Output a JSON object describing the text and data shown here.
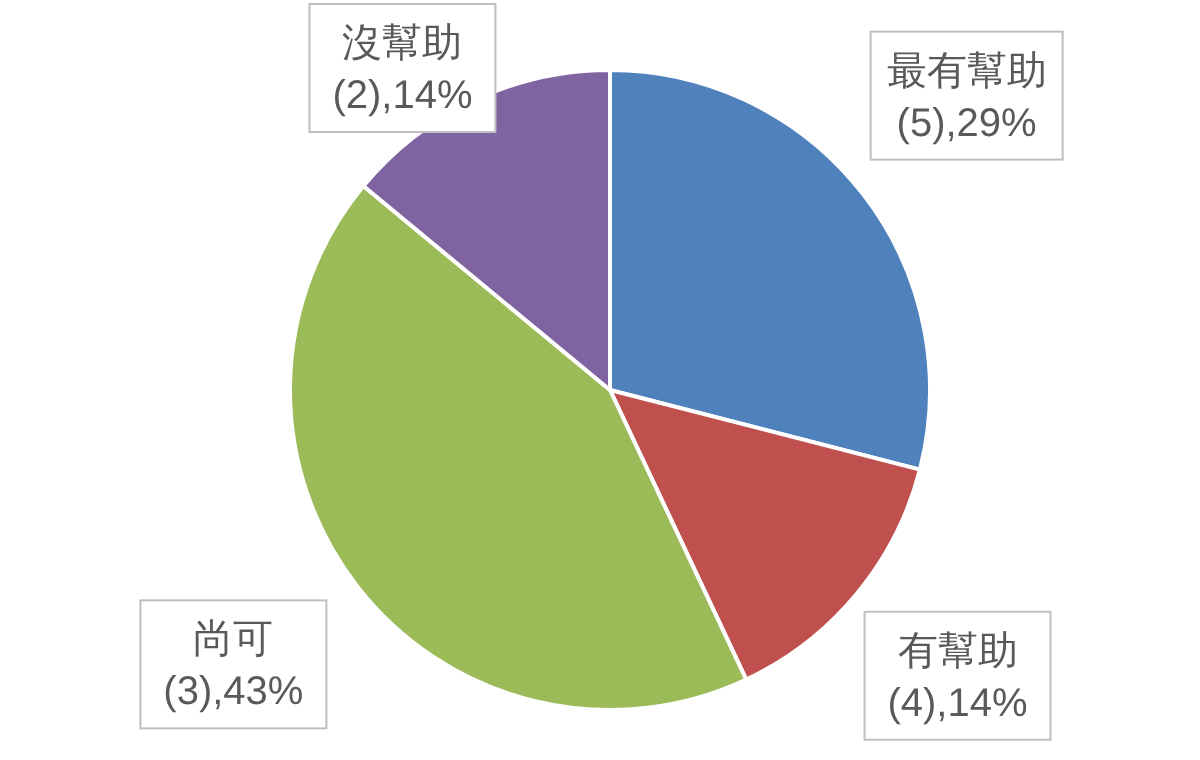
{
  "chart_data": {
    "type": "pie",
    "categories": [
      "最有幫助",
      "有幫助",
      "尚可",
      "沒幫助"
    ],
    "values": [
      29,
      14,
      43,
      14
    ],
    "colors": [
      "#4f81bd",
      "#c0504d",
      "#9bbb59",
      "#8064a2"
    ],
    "value_labels": [
      "(5),29%",
      "(4),14%",
      "(3),43%",
      "(2),14%"
    ]
  }
}
